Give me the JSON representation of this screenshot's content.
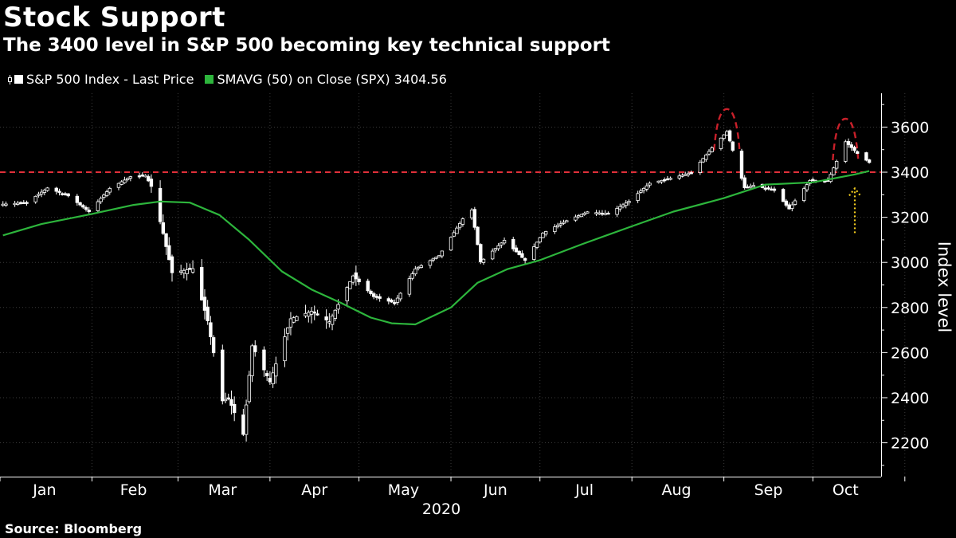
{
  "header": {
    "title": "Stock Support",
    "subtitle": "The 3400 level in S&P 500 becoming key technical support"
  },
  "legend": {
    "price_label": "S&P 500 Index - Last Price",
    "sma_label": "SMAVG (50)  on Close (SPX) 3404.56"
  },
  "footer": {
    "source": "Source: Bloomberg"
  },
  "colors": {
    "price": "#ffffff",
    "sma": "#2db53c",
    "support": "#e0303a",
    "top_marks": "#c8202a",
    "arrow": "#f2cc1f"
  },
  "chart_data": {
    "type": "line",
    "ylabel": "Index level",
    "xlabel": "2020",
    "ylim": [
      2050,
      3750
    ],
    "yticks": [
      2200,
      2400,
      2600,
      2800,
      3000,
      3200,
      3400,
      3600
    ],
    "months": [
      "Jan",
      "Feb",
      "Mar",
      "Apr",
      "May",
      "Jun",
      "Jul",
      "Aug",
      "Sep",
      "Oct"
    ],
    "support_level": 3400,
    "legend_position": "top-left",
    "series": [
      {
        "name": "S&P 500 Index - Last Price",
        "x": [
          "2020-01-02",
          "2020-01-10",
          "2020-01-17",
          "2020-01-24",
          "2020-01-31",
          "2020-02-07",
          "2020-02-14",
          "2020-02-19",
          "2020-02-21",
          "2020-02-25",
          "2020-02-28",
          "2020-03-06",
          "2020-03-11",
          "2020-03-16",
          "2020-03-18",
          "2020-03-23",
          "2020-03-26",
          "2020-04-01",
          "2020-04-08",
          "2020-04-15",
          "2020-04-21",
          "2020-04-29",
          "2020-05-06",
          "2020-05-13",
          "2020-05-20",
          "2020-05-28",
          "2020-06-05",
          "2020-06-08",
          "2020-06-11",
          "2020-06-19",
          "2020-06-26",
          "2020-07-02",
          "2020-07-10",
          "2020-07-17",
          "2020-07-24",
          "2020-07-31",
          "2020-08-07",
          "2020-08-14",
          "2020-08-21",
          "2020-08-28",
          "2020-09-02",
          "2020-09-08",
          "2020-09-11",
          "2020-09-18",
          "2020-09-23",
          "2020-09-30",
          "2020-10-06",
          "2020-10-12",
          "2020-10-16",
          "2020-10-20"
        ],
        "values": [
          3258,
          3265,
          3330,
          3295,
          3225,
          3328,
          3380,
          3386,
          3337,
          3128,
          2954,
          2972,
          2741,
          2386,
          2398,
          2237,
          2630,
          2470,
          2750,
          2783,
          2737,
          2940,
          2848,
          2820,
          2971,
          3030,
          3193,
          3232,
          3002,
          3098,
          3009,
          3130,
          3185,
          3224,
          3216,
          3271,
          3351,
          3373,
          3397,
          3508,
          3580,
          3331,
          3341,
          3319,
          3237,
          3363,
          3361,
          3535,
          3483,
          3443
        ]
      },
      {
        "name": "SMAVG (50)  on Close (SPX)",
        "x": [
          "2020-01-02",
          "2020-01-15",
          "2020-02-01",
          "2020-02-15",
          "2020-02-24",
          "2020-03-05",
          "2020-03-15",
          "2020-03-25",
          "2020-04-05",
          "2020-04-15",
          "2020-04-25",
          "2020-05-05",
          "2020-05-12",
          "2020-05-20",
          "2020-06-01",
          "2020-06-10",
          "2020-06-20",
          "2020-07-01",
          "2020-07-15",
          "2020-08-01",
          "2020-08-15",
          "2020-09-01",
          "2020-09-15",
          "2020-10-01",
          "2020-10-15",
          "2020-10-20"
        ],
        "values": [
          3120,
          3170,
          3215,
          3255,
          3270,
          3265,
          3210,
          3100,
          2960,
          2880,
          2820,
          2755,
          2730,
          2725,
          2800,
          2910,
          2970,
          3010,
          3080,
          3160,
          3225,
          3285,
          3345,
          3355,
          3390,
          3405
        ]
      }
    ]
  }
}
